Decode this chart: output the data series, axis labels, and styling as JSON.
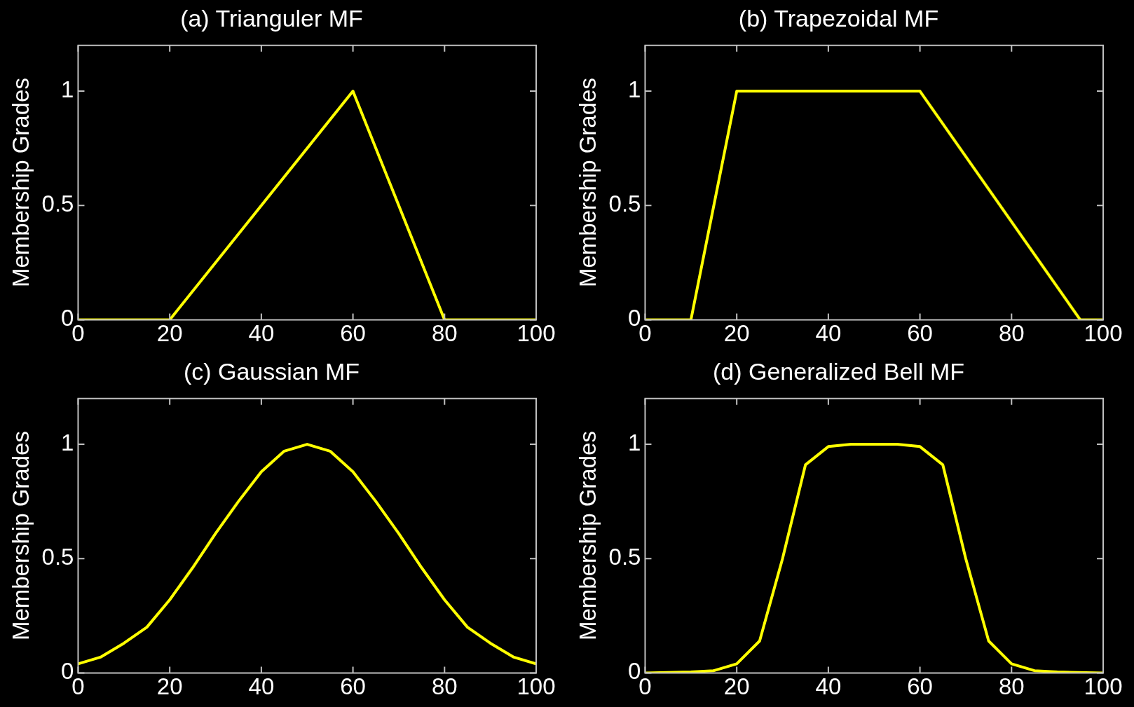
{
  "chart_data": [
    {
      "type": "line",
      "title": "(a) Trianguler MF",
      "ylabel": "Membership Grades",
      "x": [
        0,
        20,
        60,
        80,
        100
      ],
      "series": [
        {
          "color": "#ffff00",
          "values": [
            0,
            0,
            1,
            0,
            0
          ]
        }
      ],
      "xlim": [
        0,
        100
      ],
      "ylim": [
        0,
        1.2
      ],
      "xticks": [
        0,
        20,
        40,
        60,
        80,
        100
      ],
      "yticks": [
        0,
        0.5,
        1
      ]
    },
    {
      "type": "line",
      "title": "(b) Trapezoidal MF",
      "ylabel": "Membership Grades",
      "x": [
        0,
        10,
        20,
        60,
        95,
        100
      ],
      "series": [
        {
          "color": "#ffff00",
          "values": [
            0,
            0,
            1,
            1,
            0,
            0
          ]
        }
      ],
      "xlim": [
        0,
        100
      ],
      "ylim": [
        0,
        1.2
      ],
      "xticks": [
        0,
        20,
        40,
        60,
        80,
        100
      ],
      "yticks": [
        0,
        0.5,
        1
      ]
    },
    {
      "type": "line",
      "title": "(c) Gaussian MF",
      "ylabel": "Membership Grades",
      "x": [
        0,
        5,
        10,
        15,
        20,
        25,
        30,
        35,
        40,
        45,
        50,
        55,
        60,
        65,
        70,
        75,
        80,
        85,
        90,
        95,
        100
      ],
      "series": [
        {
          "color": "#ffff00",
          "values": [
            0.04,
            0.07,
            0.13,
            0.2,
            0.32,
            0.46,
            0.61,
            0.75,
            0.88,
            0.97,
            1,
            0.97,
            0.88,
            0.75,
            0.61,
            0.46,
            0.32,
            0.2,
            0.13,
            0.07,
            0.04
          ]
        }
      ],
      "xlim": [
        0,
        100
      ],
      "ylim": [
        0,
        1.2
      ],
      "xticks": [
        0,
        20,
        40,
        60,
        80,
        100
      ],
      "yticks": [
        0,
        0.5,
        1
      ]
    },
    {
      "type": "line",
      "title": "(d) Generalized Bell MF",
      "ylabel": "Membership Grades",
      "x": [
        0,
        10,
        15,
        20,
        25,
        30,
        35,
        40,
        45,
        50,
        55,
        60,
        65,
        70,
        75,
        80,
        85,
        90,
        100
      ],
      "series": [
        {
          "color": "#ffff00",
          "values": [
            0,
            0.004,
            0.01,
            0.04,
            0.14,
            0.5,
            0.91,
            0.99,
            1,
            1,
            1,
            0.99,
            0.91,
            0.5,
            0.14,
            0.04,
            0.01,
            0.004,
            0
          ]
        }
      ],
      "xlim": [
        0,
        100
      ],
      "ylim": [
        0,
        1.2
      ],
      "xticks": [
        0,
        20,
        40,
        60,
        80,
        100
      ],
      "yticks": [
        0,
        0.5,
        1
      ]
    }
  ]
}
